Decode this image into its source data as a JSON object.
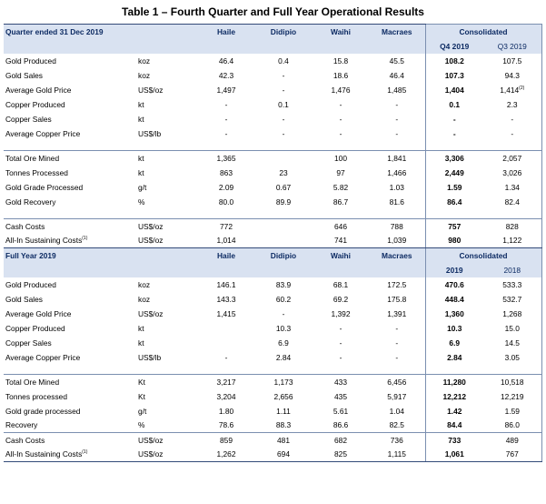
{
  "title": "Table 1 – Fourth Quarter and Full Year Operational Results",
  "consolidated_label": "Consolidated",
  "sites": [
    "Haile",
    "Didipio",
    "Waihi",
    "Macraes"
  ],
  "quarter": {
    "heading": "Quarter ended 31 Dec 2019",
    "cur_label": "Q4 2019",
    "prev_label": "Q3 2019",
    "rows": [
      {
        "label": "Gold Produced",
        "unit": "koz",
        "v": [
          "46.4",
          "0.4",
          "15.8",
          "45.5"
        ],
        "cur": "108.2",
        "prev": "107.5"
      },
      {
        "label": "Gold Sales",
        "unit": "koz",
        "v": [
          "42.3",
          "-",
          "18.6",
          "46.4"
        ],
        "cur": "107.3",
        "prev": "94.3"
      },
      {
        "label": "Average Gold Price",
        "unit": "US$/oz",
        "v": [
          "1,497",
          "-",
          "1,476",
          "1,485"
        ],
        "cur": "1,404",
        "prev": "1,414",
        "prev_sup": "(2)"
      },
      {
        "label": "Copper Produced",
        "unit": "kt",
        "v": [
          "-",
          "0.1",
          "-",
          "-"
        ],
        "cur": "0.1",
        "prev": "2.3"
      },
      {
        "label": "Copper Sales",
        "unit": "kt",
        "v": [
          "-",
          "-",
          "-",
          "-"
        ],
        "cur": "-",
        "prev": "-"
      },
      {
        "label": "Average Copper Price",
        "unit": "US$/lb",
        "v": [
          "-",
          "-",
          "-",
          "-"
        ],
        "cur": "-",
        "prev": "-"
      },
      {
        "gap": true
      },
      {
        "label": "Total Ore Mined",
        "unit": "kt",
        "v": [
          "1,365",
          "",
          "100",
          "1,841"
        ],
        "cur": "3,306",
        "prev": "2,057",
        "sep": true
      },
      {
        "label": "Tonnes Processed",
        "unit": "kt",
        "v": [
          "863",
          "23",
          "97",
          "1,466"
        ],
        "cur": "2,449",
        "prev": "3,026"
      },
      {
        "label": "Gold Grade Processed",
        "unit": "g/t",
        "v": [
          "2.09",
          "0.67",
          "5.82",
          "1.03"
        ],
        "cur": "1.59",
        "prev": "1.34"
      },
      {
        "label": "Gold Recovery",
        "unit": "%",
        "v": [
          "80.0",
          "89.9",
          "86.7",
          "81.6"
        ],
        "cur": "86.4",
        "prev": "82.4"
      },
      {
        "gap": true
      },
      {
        "label": "Cash Costs",
        "unit": "US$/oz",
        "v": [
          "772",
          "",
          "646",
          "788"
        ],
        "cur": "757",
        "prev": "828",
        "sep": true
      },
      {
        "label": "All-In Sustaining Costs",
        "sup": "(1)",
        "unit": "US$/oz",
        "v": [
          "1,014",
          "",
          "741",
          "1,039"
        ],
        "cur": "980",
        "prev": "1,122"
      }
    ]
  },
  "year": {
    "heading": "Full Year 2019",
    "cur_label": "2019",
    "prev_label": "2018",
    "rows": [
      {
        "label": "Gold Produced",
        "unit": "koz",
        "v": [
          "146.1",
          "83.9",
          "68.1",
          "172.5"
        ],
        "cur": "470.6",
        "prev": "533.3"
      },
      {
        "label": "Gold Sales",
        "unit": "koz",
        "v": [
          "143.3",
          "60.2",
          "69.2",
          "175.8"
        ],
        "cur": "448.4",
        "prev": "532.7"
      },
      {
        "label": "Average Gold Price",
        "unit": "US$/oz",
        "v": [
          "1,415",
          "-",
          "1,392",
          "1,391"
        ],
        "cur": "1,360",
        "prev": "1,268"
      },
      {
        "label": "Copper Produced",
        "unit": "kt",
        "v": [
          "",
          "10.3",
          "-",
          "-"
        ],
        "cur": "10.3",
        "prev": "15.0"
      },
      {
        "label": "Copper Sales",
        "unit": "kt",
        "v": [
          "",
          "6.9",
          "-",
          "-"
        ],
        "cur": "6.9",
        "prev": "14.5"
      },
      {
        "label": "Average Copper Price",
        "unit": "US$/lb",
        "v": [
          "-",
          "2.84",
          "-",
          "-"
        ],
        "cur": "2.84",
        "prev": "3.05"
      },
      {
        "gap": true
      },
      {
        "label": "Total Ore Mined",
        "unit": "Kt",
        "v": [
          "3,217",
          "1,173",
          "433",
          "6,456"
        ],
        "cur": "11,280",
        "prev": "10,518",
        "sep": true
      },
      {
        "label": "Tonnes processed",
        "unit": "Kt",
        "v": [
          "3,204",
          "2,656",
          "435",
          "5,917"
        ],
        "cur": "12,212",
        "prev": "12,219"
      },
      {
        "label": "Gold grade processed",
        "unit": "g/t",
        "v": [
          "1.80",
          "1.11",
          "5.61",
          "1.04"
        ],
        "cur": "1.42",
        "prev": "1.59"
      },
      {
        "label": "Recovery",
        "unit": "%",
        "v": [
          "78.6",
          "88.3",
          "86.6",
          "82.5"
        ],
        "cur": "84.4",
        "prev": "86.0"
      },
      {
        "label": "Cash Costs",
        "unit": "US$/oz",
        "v": [
          "859",
          "481",
          "682",
          "736"
        ],
        "cur": "733",
        "prev": "489",
        "sep": true
      },
      {
        "label": "All-In Sustaining Costs",
        "sup": "(1)",
        "unit": "US$/oz",
        "v": [
          "1,262",
          "694",
          "825",
          "1,115"
        ],
        "cur": "1,061",
        "prev": "767"
      }
    ]
  }
}
